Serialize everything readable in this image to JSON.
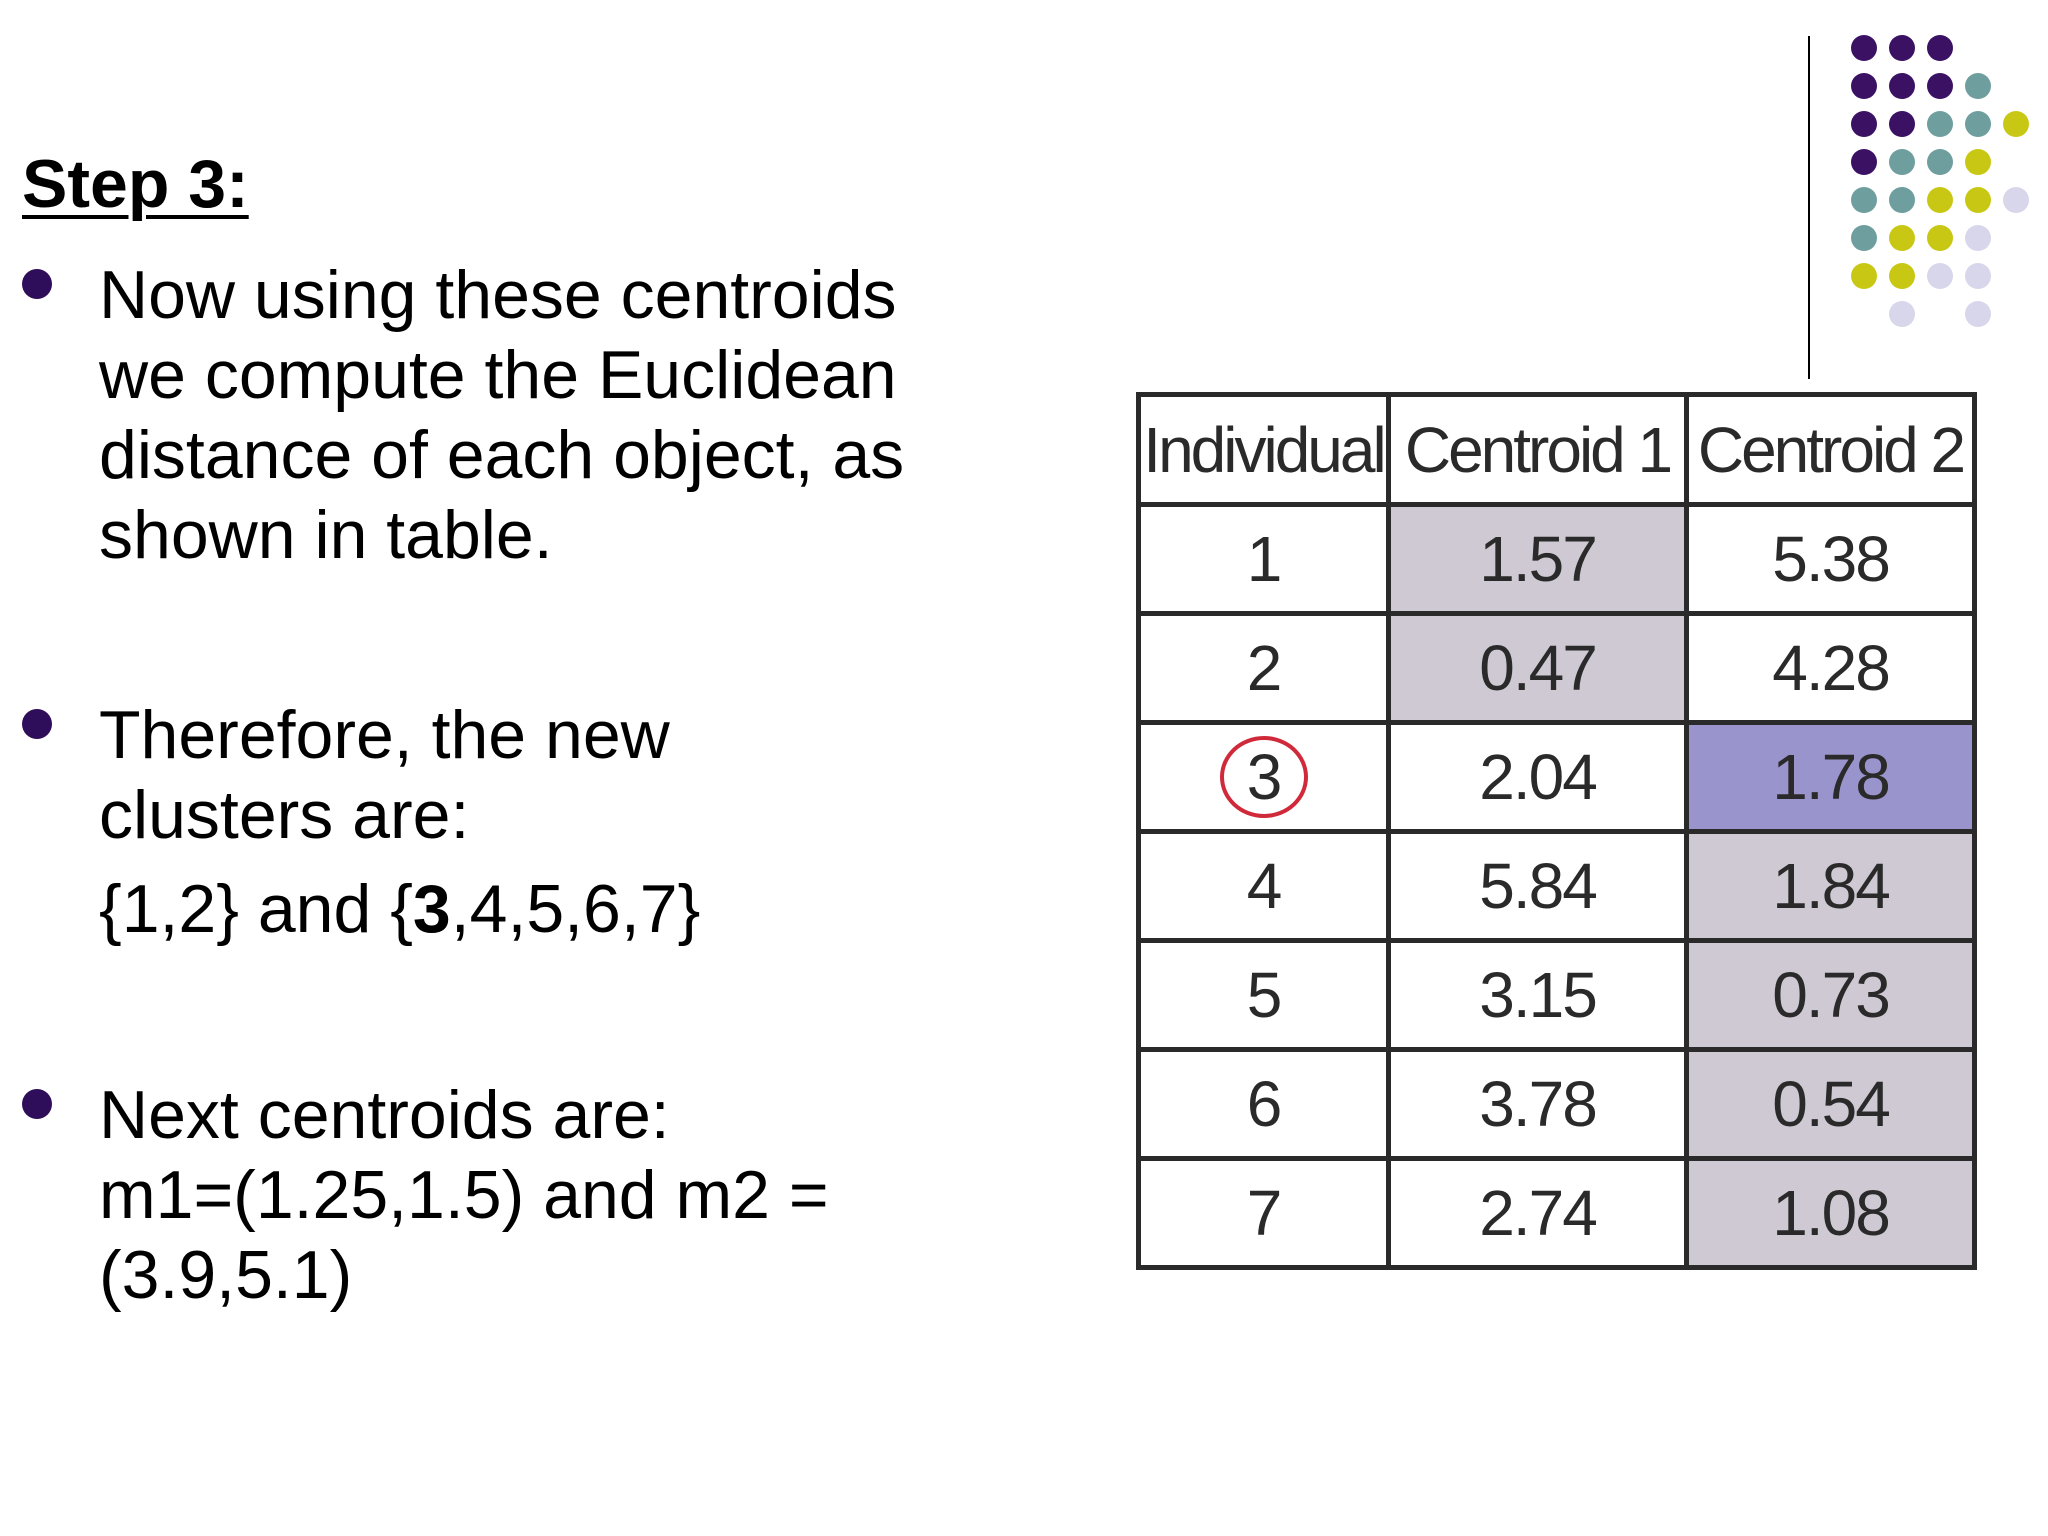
{
  "heading": "Step 3:",
  "bullets": [
    {
      "lines": [
        "Now using these centroids",
        "we compute the Euclidean",
        "distance of each object, as",
        "shown in table."
      ]
    },
    {
      "lines": [
        "Therefore, the new",
        "clusters are:"
      ],
      "sub": {
        "pre": "{1,2} and {",
        "bold": "3",
        "post": ",4,5,6,7}"
      }
    },
    {
      "lines": [
        "Next centroids are:",
        "m1=(1.25,1.5) and m2 =",
        "(3.9,5.1)"
      ]
    }
  ],
  "table": {
    "headers": [
      "Individual",
      "Centroid 1",
      "Centroid 2"
    ],
    "rows": [
      {
        "individual": "1",
        "c1": "1.57",
        "c2": "5.38"
      },
      {
        "individual": "2",
        "c1": "0.47",
        "c2": "4.28"
      },
      {
        "individual": "3",
        "c1": "2.04",
        "c2": "1.78"
      },
      {
        "individual": "4",
        "c1": "5.84",
        "c2": "1.84"
      },
      {
        "individual": "5",
        "c1": "3.15",
        "c2": "0.73"
      },
      {
        "individual": "6",
        "c1": "3.78",
        "c2": "0.54"
      },
      {
        "individual": "7",
        "c1": "2.74",
        "c2": "1.08"
      }
    ]
  },
  "colors": {
    "bullet": "#2e0d5a",
    "shade": "#cfc9d3",
    "highlight": "#9a94cc",
    "circle": "#d02a3a",
    "decor_purple": "#3b1164",
    "decor_teal": "#6f9e9e",
    "decor_yellow": "#c8c814",
    "decor_lavender": "#d8d6ea"
  }
}
